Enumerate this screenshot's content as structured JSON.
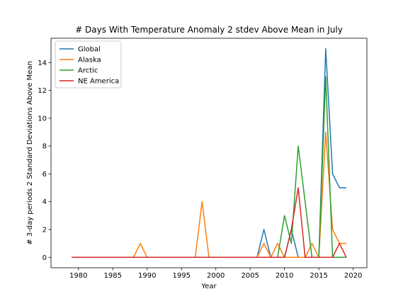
{
  "chart_data": {
    "type": "line",
    "title": "# Days With Temperature Anomaly 2 stdev Above Mean in July",
    "xlabel": "Year",
    "ylabel": "# 3-day periods 2 Standard Deviations Above Mean",
    "xlim": [
      1976,
      2022
    ],
    "ylim": [
      -0.75,
      15.75
    ],
    "xticks": [
      1980,
      1985,
      1990,
      1995,
      2000,
      2005,
      2010,
      2015,
      2020
    ],
    "yticks": [
      0,
      2,
      4,
      6,
      8,
      10,
      12,
      14
    ],
    "legend_position": "upper-left",
    "grid": false,
    "x": [
      1979,
      1980,
      1981,
      1982,
      1983,
      1984,
      1985,
      1986,
      1987,
      1988,
      1989,
      1990,
      1991,
      1992,
      1993,
      1994,
      1995,
      1996,
      1997,
      1998,
      1999,
      2000,
      2001,
      2002,
      2003,
      2004,
      2005,
      2006,
      2007,
      2008,
      2009,
      2010,
      2011,
      2012,
      2013,
      2014,
      2015,
      2016,
      2017,
      2018,
      2019
    ],
    "series": [
      {
        "name": "Global",
        "color": "#1f77b4",
        "values": [
          0,
          0,
          0,
          0,
          0,
          0,
          0,
          0,
          0,
          0,
          0,
          0,
          0,
          0,
          0,
          0,
          0,
          0,
          0,
          0,
          0,
          0,
          0,
          0,
          0,
          0,
          0,
          0,
          2,
          0,
          0,
          0,
          2,
          0,
          0,
          0,
          0,
          15,
          6,
          5,
          5
        ]
      },
      {
        "name": "Alaska",
        "color": "#ff7f0e",
        "values": [
          0,
          0,
          0,
          0,
          0,
          0,
          0,
          0,
          0,
          0,
          1,
          0,
          0,
          0,
          0,
          0,
          0,
          0,
          0,
          4,
          0,
          0,
          0,
          0,
          0,
          0,
          0,
          0,
          1,
          0,
          1,
          0,
          0,
          0,
          0,
          1,
          0,
          9,
          2,
          1,
          1
        ]
      },
      {
        "name": "Arctic",
        "color": "#2ca02c",
        "values": [
          0,
          0,
          0,
          0,
          0,
          0,
          0,
          0,
          0,
          0,
          0,
          0,
          0,
          0,
          0,
          0,
          0,
          0,
          0,
          0,
          0,
          0,
          0,
          0,
          0,
          0,
          0,
          0,
          0,
          0,
          0,
          3,
          1,
          8,
          4,
          0,
          0,
          13,
          0,
          0,
          0
        ]
      },
      {
        "name": "NE America",
        "color": "#d62728",
        "values": [
          0,
          0,
          0,
          0,
          0,
          0,
          0,
          0,
          0,
          0,
          0,
          0,
          0,
          0,
          0,
          0,
          0,
          0,
          0,
          0,
          0,
          0,
          0,
          0,
          0,
          0,
          0,
          0,
          0,
          0,
          0,
          0,
          2,
          5,
          0,
          0,
          0,
          0,
          0,
          1,
          0
        ]
      }
    ]
  }
}
